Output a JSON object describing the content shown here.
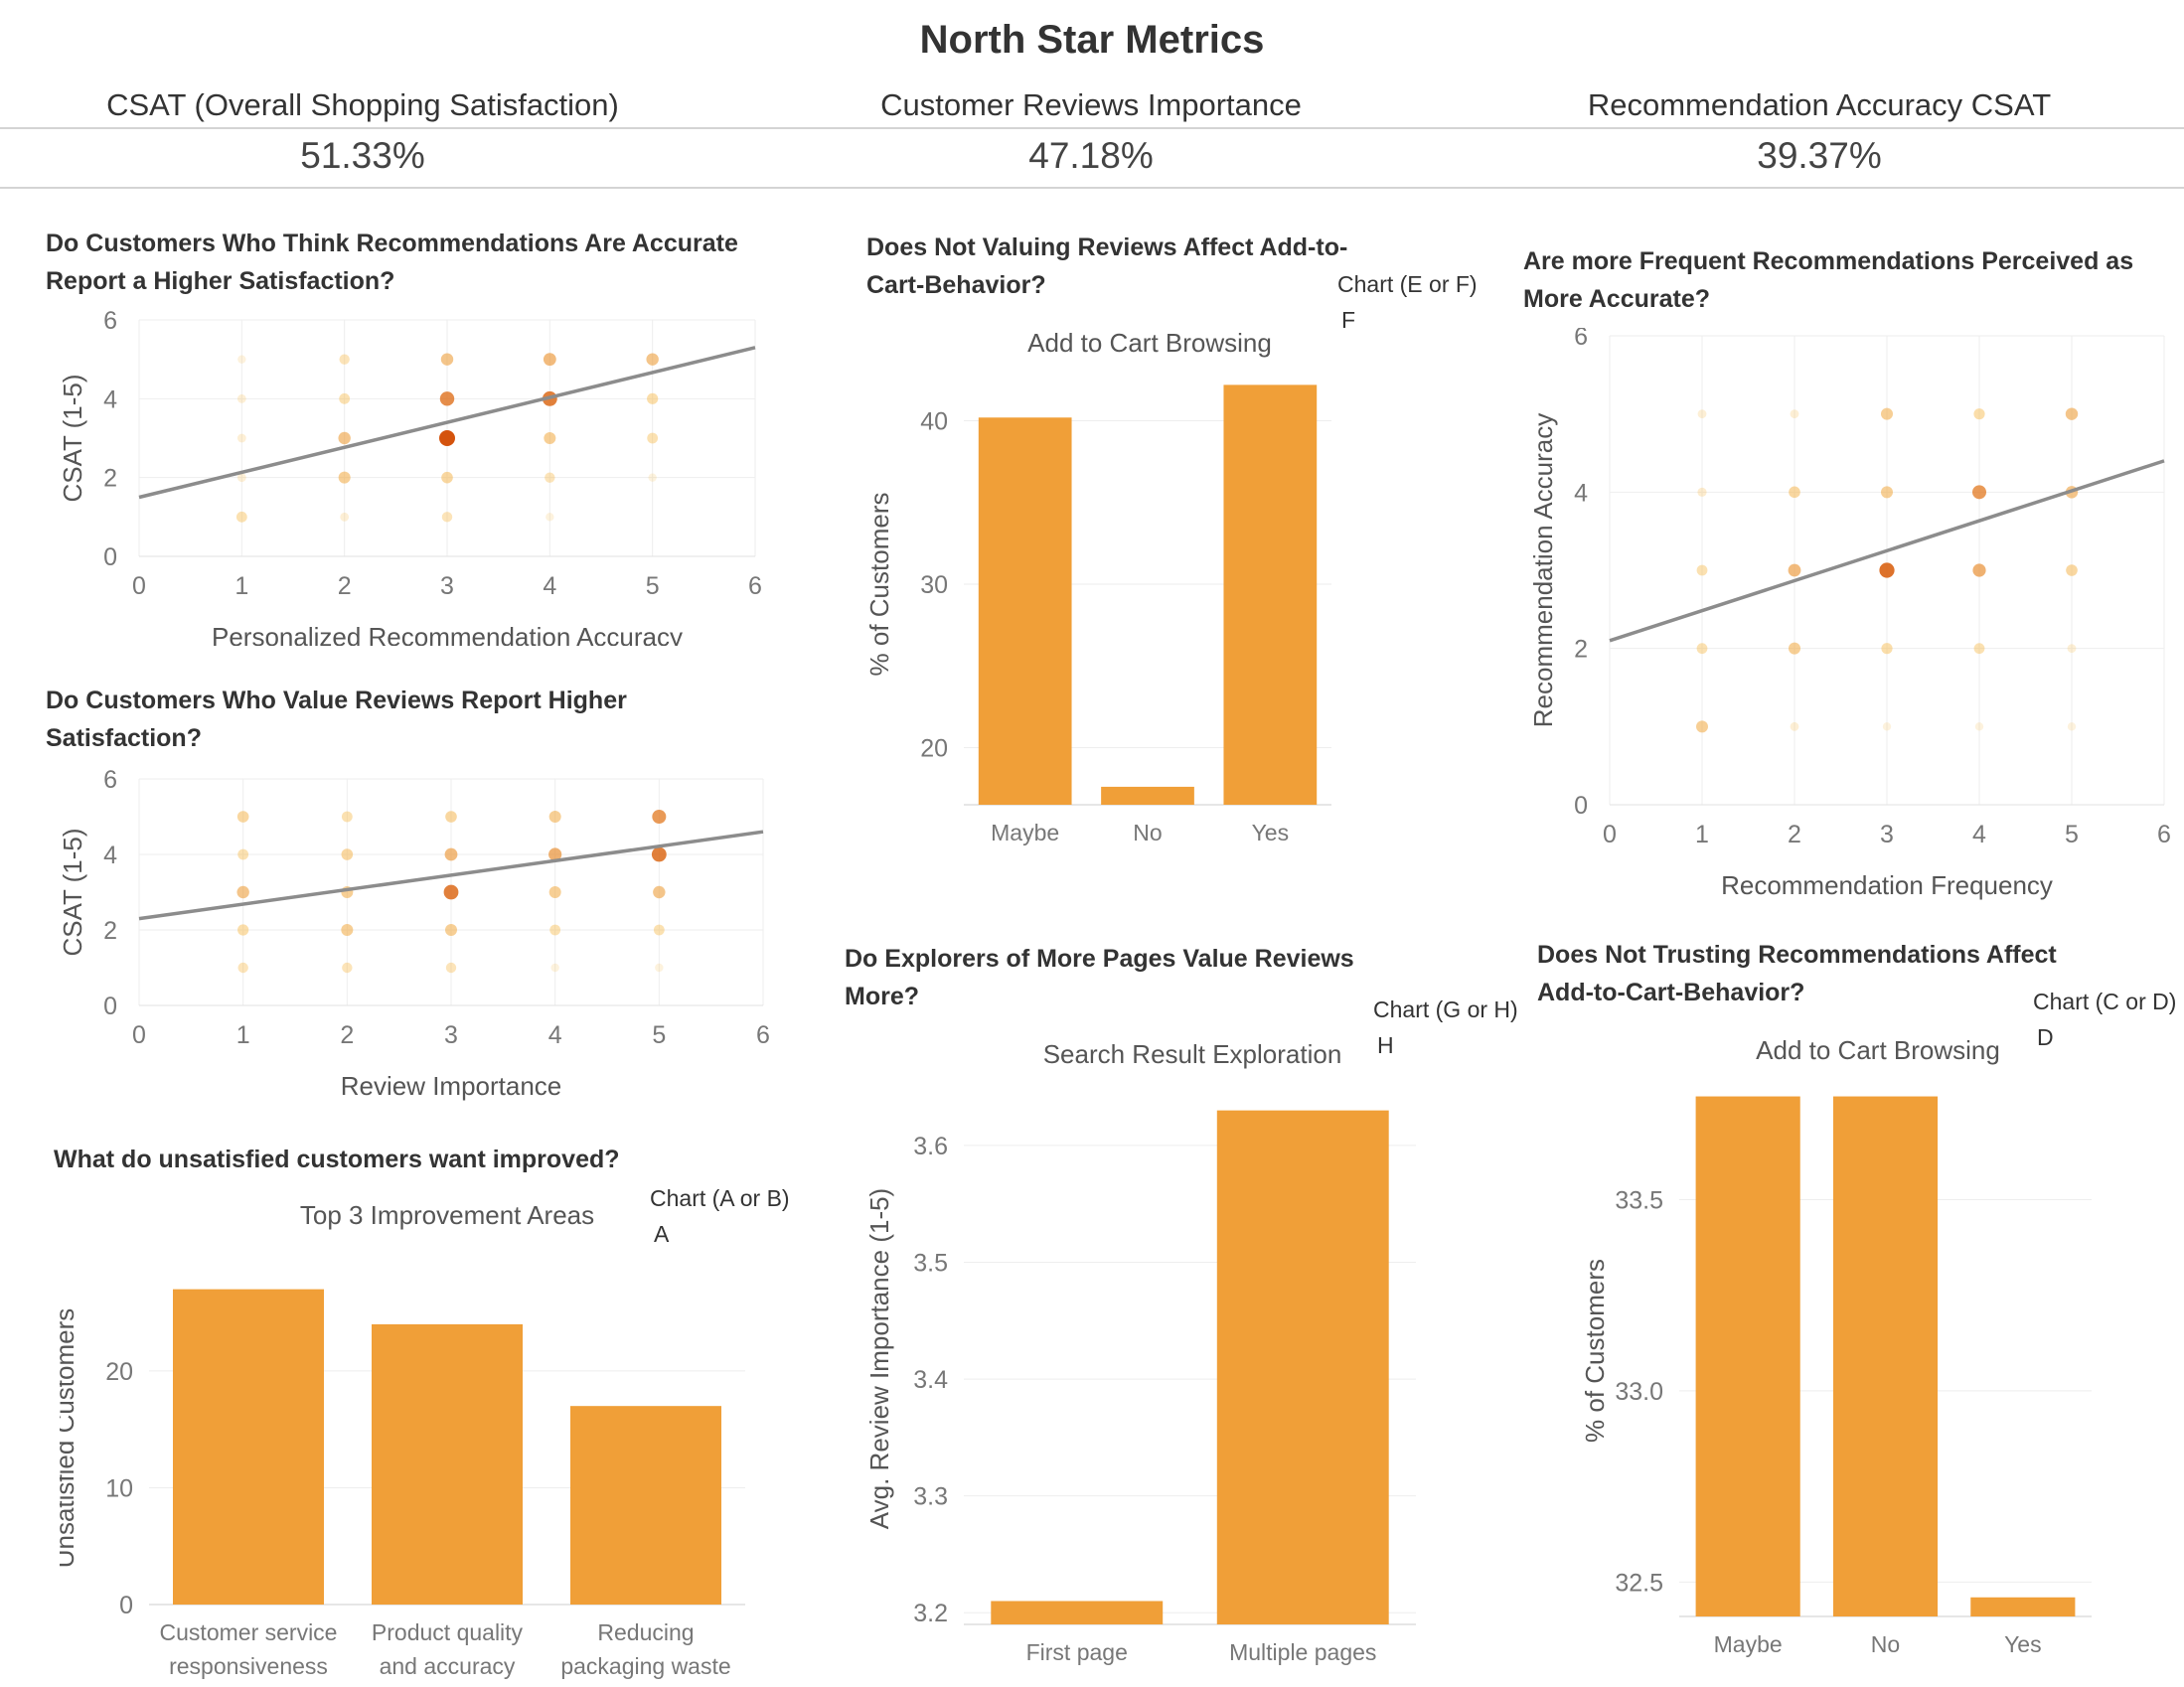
{
  "page": {
    "title": "North Star Metrics"
  },
  "kpis": [
    {
      "label": "CSAT (Overall Shopping Satisfaction)",
      "value": "51.33%"
    },
    {
      "label": "Customer Reviews Importance",
      "value": "47.18%"
    },
    {
      "label": "Recommendation Accuracy CSAT",
      "value": "39.37%"
    }
  ],
  "colors": {
    "bar": "#f09f38",
    "dot_light": "#f6b94a",
    "dot_dark": "#d24a00",
    "trend": "#8c8c8c",
    "grid": "#eeeeee"
  },
  "chart_data": [
    {
      "id": "scatter_rec_accuracy_csat",
      "type": "scatter",
      "question": "Do Customers Who Think Recommendations Are Accurate Report a Higher Satisfaction?",
      "xlabel": "Personalized Recommendation Accuracy",
      "ylabel": "CSAT (1-5)",
      "xlim": [
        0,
        6
      ],
      "ylim": [
        0,
        6
      ],
      "xticks": [
        0,
        1,
        2,
        3,
        4,
        5,
        6
      ],
      "yticks": [
        0,
        2,
        4,
        6
      ],
      "trendline": {
        "x": [
          0,
          6
        ],
        "y": [
          1.5,
          5.3
        ]
      },
      "points": [
        {
          "x": 1,
          "y": 1,
          "w": 0.35
        },
        {
          "x": 1,
          "y": 2,
          "w": 0.1
        },
        {
          "x": 1,
          "y": 3,
          "w": 0.1
        },
        {
          "x": 1,
          "y": 4,
          "w": 0.1
        },
        {
          "x": 1,
          "y": 5,
          "w": 0.05
        },
        {
          "x": 2,
          "y": 1,
          "w": 0.1
        },
        {
          "x": 2,
          "y": 2,
          "w": 0.5
        },
        {
          "x": 2,
          "y": 3,
          "w": 0.55
        },
        {
          "x": 2,
          "y": 4,
          "w": 0.35
        },
        {
          "x": 2,
          "y": 5,
          "w": 0.3
        },
        {
          "x": 3,
          "y": 1,
          "w": 0.3
        },
        {
          "x": 3,
          "y": 2,
          "w": 0.45
        },
        {
          "x": 3,
          "y": 3,
          "w": 1.0
        },
        {
          "x": 3,
          "y": 4,
          "w": 0.8
        },
        {
          "x": 3,
          "y": 5,
          "w": 0.55
        },
        {
          "x": 4,
          "y": 1,
          "w": 0.05
        },
        {
          "x": 4,
          "y": 2,
          "w": 0.3
        },
        {
          "x": 4,
          "y": 3,
          "w": 0.5
        },
        {
          "x": 4,
          "y": 4,
          "w": 0.85
        },
        {
          "x": 4,
          "y": 5,
          "w": 0.6
        },
        {
          "x": 5,
          "y": 2,
          "w": 0.05
        },
        {
          "x": 5,
          "y": 3,
          "w": 0.35
        },
        {
          "x": 5,
          "y": 4,
          "w": 0.4
        },
        {
          "x": 5,
          "y": 5,
          "w": 0.55
        }
      ]
    },
    {
      "id": "scatter_review_importance_csat",
      "type": "scatter",
      "question": "Do Customers Who Value Reviews Report Higher Satisfaction?",
      "xlabel": "Review Importance",
      "ylabel": "CSAT (1-5)",
      "xlim": [
        0,
        6
      ],
      "ylim": [
        0,
        6
      ],
      "xticks": [
        0,
        1,
        2,
        3,
        4,
        5,
        6
      ],
      "yticks": [
        0,
        2,
        4,
        6
      ],
      "trendline": {
        "x": [
          0,
          6
        ],
        "y": [
          2.3,
          4.6
        ]
      },
      "points": [
        {
          "x": 1,
          "y": 1,
          "w": 0.3
        },
        {
          "x": 1,
          "y": 2,
          "w": 0.4
        },
        {
          "x": 1,
          "y": 3,
          "w": 0.55
        },
        {
          "x": 1,
          "y": 4,
          "w": 0.35
        },
        {
          "x": 1,
          "y": 5,
          "w": 0.45
        },
        {
          "x": 2,
          "y": 1,
          "w": 0.3
        },
        {
          "x": 2,
          "y": 2,
          "w": 0.5
        },
        {
          "x": 2,
          "y": 3,
          "w": 0.5
        },
        {
          "x": 2,
          "y": 4,
          "w": 0.45
        },
        {
          "x": 2,
          "y": 5,
          "w": 0.35
        },
        {
          "x": 3,
          "y": 1,
          "w": 0.3
        },
        {
          "x": 3,
          "y": 2,
          "w": 0.5
        },
        {
          "x": 3,
          "y": 3,
          "w": 0.85
        },
        {
          "x": 3,
          "y": 4,
          "w": 0.6
        },
        {
          "x": 3,
          "y": 5,
          "w": 0.45
        },
        {
          "x": 4,
          "y": 1,
          "w": 0.05
        },
        {
          "x": 4,
          "y": 2,
          "w": 0.35
        },
        {
          "x": 4,
          "y": 3,
          "w": 0.5
        },
        {
          "x": 4,
          "y": 4,
          "w": 0.65
        },
        {
          "x": 4,
          "y": 5,
          "w": 0.5
        },
        {
          "x": 5,
          "y": 1,
          "w": 0.05
        },
        {
          "x": 5,
          "y": 2,
          "w": 0.35
        },
        {
          "x": 5,
          "y": 3,
          "w": 0.55
        },
        {
          "x": 5,
          "y": 4,
          "w": 0.85
        },
        {
          "x": 5,
          "y": 5,
          "w": 0.75
        }
      ]
    },
    {
      "id": "bar_reviews_add_to_cart",
      "type": "bar",
      "question": "Does Not Valuing Reviews Affect Add-to-Cart-Behavior?",
      "title": "Add to Cart Browsing",
      "note": "Chart (E or F)",
      "note_selected": "F",
      "ylabel": "% of Customers",
      "categories": [
        "Maybe",
        "No",
        "Yes"
      ],
      "values": [
        40.2,
        17.6,
        42.2
      ],
      "ylim": [
        16.5,
        43.5
      ],
      "yticks": [
        20,
        30,
        40
      ]
    },
    {
      "id": "scatter_rec_frequency_accuracy",
      "type": "scatter",
      "question": "Are more Frequent Recommendations Perceived as More Accurate?",
      "xlabel": "Recommendation Frequency",
      "ylabel": "Recommendation Accuracy",
      "xlim": [
        0,
        6
      ],
      "ylim": [
        0,
        6
      ],
      "xticks": [
        0,
        1,
        2,
        3,
        4,
        5,
        6
      ],
      "yticks": [
        0,
        2,
        4,
        6
      ],
      "trendline": {
        "x": [
          0,
          6
        ],
        "y": [
          2.1,
          4.4
        ]
      },
      "points": [
        {
          "x": 1,
          "y": 1,
          "w": 0.5
        },
        {
          "x": 1,
          "y": 2,
          "w": 0.35
        },
        {
          "x": 1,
          "y": 3,
          "w": 0.35
        },
        {
          "x": 1,
          "y": 4,
          "w": 0.15
        },
        {
          "x": 1,
          "y": 5,
          "w": 0.1
        },
        {
          "x": 2,
          "y": 1,
          "w": 0.1
        },
        {
          "x": 2,
          "y": 2,
          "w": 0.5
        },
        {
          "x": 2,
          "y": 3,
          "w": 0.6
        },
        {
          "x": 2,
          "y": 4,
          "w": 0.45
        },
        {
          "x": 2,
          "y": 5,
          "w": 0.1
        },
        {
          "x": 3,
          "y": 1,
          "w": 0.05
        },
        {
          "x": 3,
          "y": 2,
          "w": 0.4
        },
        {
          "x": 3,
          "y": 3,
          "w": 0.9
        },
        {
          "x": 3,
          "y": 4,
          "w": 0.5
        },
        {
          "x": 3,
          "y": 5,
          "w": 0.5
        },
        {
          "x": 4,
          "y": 1,
          "w": 0.05
        },
        {
          "x": 4,
          "y": 2,
          "w": 0.35
        },
        {
          "x": 4,
          "y": 3,
          "w": 0.65
        },
        {
          "x": 4,
          "y": 4,
          "w": 0.75
        },
        {
          "x": 4,
          "y": 5,
          "w": 0.4
        },
        {
          "x": 5,
          "y": 1,
          "w": 0.05
        },
        {
          "x": 5,
          "y": 2,
          "w": 0.1
        },
        {
          "x": 5,
          "y": 3,
          "w": 0.45
        },
        {
          "x": 5,
          "y": 4,
          "w": 0.55
        },
        {
          "x": 5,
          "y": 5,
          "w": 0.55
        }
      ]
    },
    {
      "id": "bar_top_improvement_areas",
      "type": "bar",
      "question": "What do unsatisfied customers want improved?",
      "title": "Top 3 Improvement Areas",
      "note": "Chart (A or B)",
      "note_selected": "A",
      "ylabel": "Unsatisfied Customers",
      "categories": [
        "Customer service responsiveness",
        "Product quality and accuracy",
        "Reducing packaging waste"
      ],
      "category_lines": [
        [
          "Customer service",
          "responsiveness"
        ],
        [
          "Product quality",
          "and accuracy"
        ],
        [
          "Reducing",
          "packaging waste"
        ]
      ],
      "values": [
        27,
        24,
        17
      ],
      "ylim": [
        0,
        28.5
      ],
      "yticks": [
        0,
        10,
        20
      ]
    },
    {
      "id": "bar_search_result_exploration",
      "type": "bar",
      "question": "Do Explorers of More Pages Value Reviews More?",
      "title": "Search Result Exploration",
      "note": "Chart (G or H)",
      "note_selected": "H",
      "ylabel": "Avg. Review Importance (1-5)",
      "categories": [
        "First page",
        "Multiple pages"
      ],
      "values": [
        3.21,
        3.63
      ],
      "ylim": [
        3.19,
        3.645
      ],
      "yticks": [
        3.2,
        3.3,
        3.4,
        3.5,
        3.6
      ]
    },
    {
      "id": "bar_trust_add_to_cart",
      "type": "bar",
      "question": "Does Not Trusting Recommendations Affect Add-to-Cart-Behavior?",
      "title": "Add to Cart Browsing",
      "note": "Chart (C or D)",
      "note_selected": "D",
      "ylabel": "% of Customers",
      "categories": [
        "Maybe",
        "No",
        "Yes"
      ],
      "values": [
        33.77,
        33.77,
        32.46
      ],
      "ylim": [
        32.41,
        33.8
      ],
      "yticks": [
        32.5,
        33.0,
        33.5
      ]
    }
  ]
}
